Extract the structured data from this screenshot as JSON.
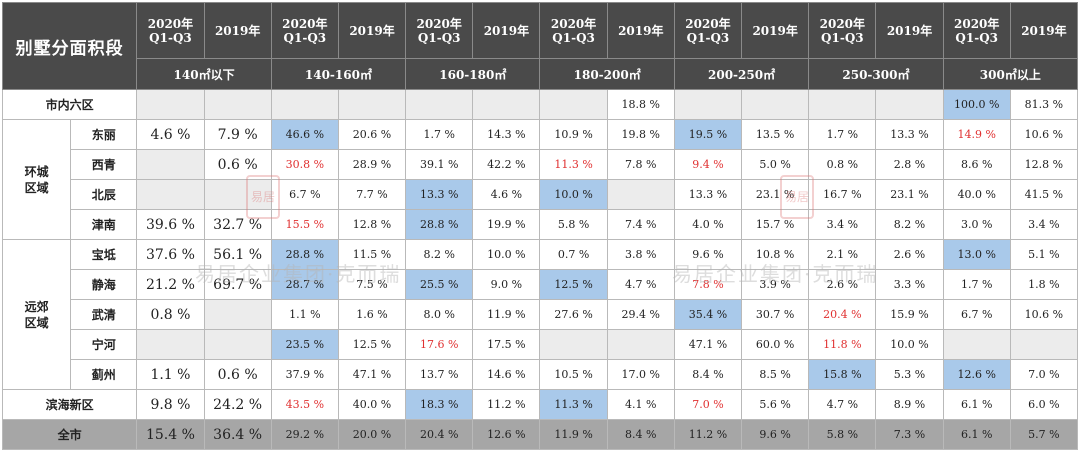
{
  "corner_title": "别墅分面积段",
  "year_labels": {
    "q3": "2020年\nQ1-Q3",
    "full": "2019年"
  },
  "ranges": [
    "140㎡以下",
    "140-160㎡",
    "160-180㎡",
    "180-200㎡",
    "200-250㎡",
    "250-300㎡",
    "300㎡以上"
  ],
  "regions": {
    "huancheng": "环城\n区域",
    "yuanjiao": "远郊\n区域"
  },
  "rows": [
    {
      "name": "市内六区",
      "cells": [
        {
          "v": "",
          "s": "gray"
        },
        {
          "v": "",
          "s": "gray"
        },
        {
          "v": "",
          "s": "gray"
        },
        {
          "v": "",
          "s": "gray"
        },
        {
          "v": "",
          "s": "gray"
        },
        {
          "v": "",
          "s": "gray"
        },
        {
          "v": "",
          "s": "gray"
        },
        {
          "v": "18.8 %",
          "s": ""
        },
        {
          "v": "",
          "s": "gray"
        },
        {
          "v": "",
          "s": "gray"
        },
        {
          "v": "",
          "s": "gray"
        },
        {
          "v": "",
          "s": "gray"
        },
        {
          "v": "100.0 %",
          "s": "blue"
        },
        {
          "v": "81.3 %",
          "s": ""
        }
      ]
    },
    {
      "name": "东丽",
      "cells": [
        {
          "v": "4.6 %",
          "s": "big"
        },
        {
          "v": "7.9 %",
          "s": "big"
        },
        {
          "v": "46.6 %",
          "s": "blue"
        },
        {
          "v": "20.6 %",
          "s": ""
        },
        {
          "v": "1.7 %",
          "s": ""
        },
        {
          "v": "14.3 %",
          "s": ""
        },
        {
          "v": "10.9 %",
          "s": ""
        },
        {
          "v": "19.8 %",
          "s": ""
        },
        {
          "v": "19.5 %",
          "s": "blue"
        },
        {
          "v": "13.5 %",
          "s": ""
        },
        {
          "v": "1.7 %",
          "s": ""
        },
        {
          "v": "13.3 %",
          "s": ""
        },
        {
          "v": "14.9 %",
          "s": "red"
        },
        {
          "v": "10.6 %",
          "s": ""
        }
      ]
    },
    {
      "name": "西青",
      "cells": [
        {
          "v": "",
          "s": "gray"
        },
        {
          "v": "0.6 %",
          "s": "big"
        },
        {
          "v": "30.8 %",
          "s": "red"
        },
        {
          "v": "28.9 %",
          "s": ""
        },
        {
          "v": "39.1 %",
          "s": ""
        },
        {
          "v": "42.2 %",
          "s": ""
        },
        {
          "v": "11.3 %",
          "s": "red"
        },
        {
          "v": "7.8 %",
          "s": ""
        },
        {
          "v": "9.4 %",
          "s": "red"
        },
        {
          "v": "5.0 %",
          "s": ""
        },
        {
          "v": "0.8 %",
          "s": ""
        },
        {
          "v": "2.8 %",
          "s": ""
        },
        {
          "v": "8.6 %",
          "s": ""
        },
        {
          "v": "12.8 %",
          "s": ""
        }
      ]
    },
    {
      "name": "北辰",
      "cells": [
        {
          "v": "",
          "s": "gray"
        },
        {
          "v": "",
          "s": "gray"
        },
        {
          "v": "6.7 %",
          "s": ""
        },
        {
          "v": "7.7 %",
          "s": ""
        },
        {
          "v": "13.3 %",
          "s": "blue"
        },
        {
          "v": "4.6 %",
          "s": ""
        },
        {
          "v": "10.0 %",
          "s": "blue"
        },
        {
          "v": "",
          "s": "gray"
        },
        {
          "v": "13.3 %",
          "s": ""
        },
        {
          "v": "23.1 %",
          "s": ""
        },
        {
          "v": "16.7 %",
          "s": ""
        },
        {
          "v": "23.1 %",
          "s": ""
        },
        {
          "v": "40.0 %",
          "s": ""
        },
        {
          "v": "41.5 %",
          "s": ""
        }
      ]
    },
    {
      "name": "津南",
      "cells": [
        {
          "v": "39.6 %",
          "s": "big"
        },
        {
          "v": "32.7 %",
          "s": "big"
        },
        {
          "v": "15.5 %",
          "s": "red"
        },
        {
          "v": "12.8 %",
          "s": ""
        },
        {
          "v": "28.8 %",
          "s": "blue"
        },
        {
          "v": "19.9 %",
          "s": ""
        },
        {
          "v": "5.8 %",
          "s": ""
        },
        {
          "v": "7.4 %",
          "s": ""
        },
        {
          "v": "4.0 %",
          "s": ""
        },
        {
          "v": "15.7 %",
          "s": ""
        },
        {
          "v": "3.4 %",
          "s": ""
        },
        {
          "v": "8.2 %",
          "s": ""
        },
        {
          "v": "3.0 %",
          "s": ""
        },
        {
          "v": "3.4 %",
          "s": ""
        }
      ]
    },
    {
      "name": "宝坻",
      "cells": [
        {
          "v": "37.6 %",
          "s": "big"
        },
        {
          "v": "56.1 %",
          "s": "big"
        },
        {
          "v": "28.8 %",
          "s": "blue"
        },
        {
          "v": "11.5 %",
          "s": ""
        },
        {
          "v": "8.2 %",
          "s": ""
        },
        {
          "v": "10.0 %",
          "s": ""
        },
        {
          "v": "0.7 %",
          "s": ""
        },
        {
          "v": "3.8 %",
          "s": ""
        },
        {
          "v": "9.6 %",
          "s": ""
        },
        {
          "v": "10.8 %",
          "s": ""
        },
        {
          "v": "2.1 %",
          "s": ""
        },
        {
          "v": "2.6 %",
          "s": ""
        },
        {
          "v": "13.0 %",
          "s": "blue"
        },
        {
          "v": "5.1 %",
          "s": ""
        }
      ]
    },
    {
      "name": "静海",
      "cells": [
        {
          "v": "21.2 %",
          "s": "big"
        },
        {
          "v": "69.7 %",
          "s": "big"
        },
        {
          "v": "28.7 %",
          "s": "blue"
        },
        {
          "v": "7.5 %",
          "s": ""
        },
        {
          "v": "25.5 %",
          "s": "blue"
        },
        {
          "v": "9.0 %",
          "s": ""
        },
        {
          "v": "12.5 %",
          "s": "blue"
        },
        {
          "v": "4.7 %",
          "s": ""
        },
        {
          "v": "7.8 %",
          "s": "red"
        },
        {
          "v": "3.9 %",
          "s": ""
        },
        {
          "v": "2.6 %",
          "s": ""
        },
        {
          "v": "3.3 %",
          "s": ""
        },
        {
          "v": "1.7 %",
          "s": ""
        },
        {
          "v": "1.8 %",
          "s": ""
        }
      ]
    },
    {
      "name": "武清",
      "cells": [
        {
          "v": "0.8 %",
          "s": "big"
        },
        {
          "v": "",
          "s": "gray"
        },
        {
          "v": "1.1 %",
          "s": ""
        },
        {
          "v": "1.6 %",
          "s": ""
        },
        {
          "v": "8.0 %",
          "s": ""
        },
        {
          "v": "11.9 %",
          "s": ""
        },
        {
          "v": "27.6 %",
          "s": ""
        },
        {
          "v": "29.4 %",
          "s": ""
        },
        {
          "v": "35.4 %",
          "s": "blue"
        },
        {
          "v": "30.7 %",
          "s": ""
        },
        {
          "v": "20.4 %",
          "s": "red"
        },
        {
          "v": "15.9 %",
          "s": ""
        },
        {
          "v": "6.7 %",
          "s": ""
        },
        {
          "v": "10.6 %",
          "s": ""
        }
      ]
    },
    {
      "name": "宁河",
      "cells": [
        {
          "v": "",
          "s": "gray"
        },
        {
          "v": "",
          "s": "gray"
        },
        {
          "v": "23.5 %",
          "s": "blue"
        },
        {
          "v": "12.5 %",
          "s": ""
        },
        {
          "v": "17.6 %",
          "s": "red"
        },
        {
          "v": "17.5 %",
          "s": ""
        },
        {
          "v": "",
          "s": "gray"
        },
        {
          "v": "",
          "s": "gray"
        },
        {
          "v": "47.1 %",
          "s": ""
        },
        {
          "v": "60.0 %",
          "s": ""
        },
        {
          "v": "11.8 %",
          "s": "red"
        },
        {
          "v": "10.0 %",
          "s": ""
        },
        {
          "v": "",
          "s": "gray"
        },
        {
          "v": "",
          "s": "gray"
        }
      ]
    },
    {
      "name": "蓟州",
      "cells": [
        {
          "v": "1.1 %",
          "s": "big"
        },
        {
          "v": "0.6 %",
          "s": "big"
        },
        {
          "v": "37.9 %",
          "s": ""
        },
        {
          "v": "47.1 %",
          "s": ""
        },
        {
          "v": "13.7 %",
          "s": ""
        },
        {
          "v": "14.6 %",
          "s": ""
        },
        {
          "v": "10.5 %",
          "s": ""
        },
        {
          "v": "17.0 %",
          "s": ""
        },
        {
          "v": "8.4 %",
          "s": ""
        },
        {
          "v": "8.5 %",
          "s": ""
        },
        {
          "v": "15.8 %",
          "s": "blue"
        },
        {
          "v": "5.3 %",
          "s": ""
        },
        {
          "v": "12.6 %",
          "s": "blue"
        },
        {
          "v": "7.0 %",
          "s": ""
        }
      ]
    },
    {
      "name": "滨海新区",
      "cells": [
        {
          "v": "9.8 %",
          "s": "big"
        },
        {
          "v": "24.2 %",
          "s": "big"
        },
        {
          "v": "43.5 %",
          "s": "red"
        },
        {
          "v": "40.0 %",
          "s": ""
        },
        {
          "v": "18.3 %",
          "s": "blue"
        },
        {
          "v": "11.2 %",
          "s": ""
        },
        {
          "v": "11.3 %",
          "s": "blue"
        },
        {
          "v": "4.1 %",
          "s": ""
        },
        {
          "v": "7.0 %",
          "s": "red"
        },
        {
          "v": "5.6 %",
          "s": ""
        },
        {
          "v": "4.7 %",
          "s": ""
        },
        {
          "v": "8.9 %",
          "s": ""
        },
        {
          "v": "6.1 %",
          "s": ""
        },
        {
          "v": "6.0 %",
          "s": ""
        }
      ]
    },
    {
      "name": "全市",
      "cells": [
        {
          "v": "15.4 %",
          "s": "big"
        },
        {
          "v": "36.4 %",
          "s": "big"
        },
        {
          "v": "29.2 %",
          "s": ""
        },
        {
          "v": "20.0 %",
          "s": ""
        },
        {
          "v": "20.4 %",
          "s": ""
        },
        {
          "v": "12.6 %",
          "s": ""
        },
        {
          "v": "11.9 %",
          "s": ""
        },
        {
          "v": "8.4 %",
          "s": ""
        },
        {
          "v": "11.2 %",
          "s": ""
        },
        {
          "v": "9.6 %",
          "s": ""
        },
        {
          "v": "5.8 %",
          "s": ""
        },
        {
          "v": "7.3 %",
          "s": ""
        },
        {
          "v": "6.1 %",
          "s": ""
        },
        {
          "v": "5.7 %",
          "s": ""
        }
      ]
    }
  ],
  "watermark": "易居企业集团·克而瑞",
  "seal": "易居",
  "colors": {
    "header_bg": "#4a4a4a",
    "highlight_blue": "#a9c9ea",
    "highlight_red": "#e03030",
    "empty_gray": "#ececec",
    "total_bg": "#a6a6a6"
  }
}
